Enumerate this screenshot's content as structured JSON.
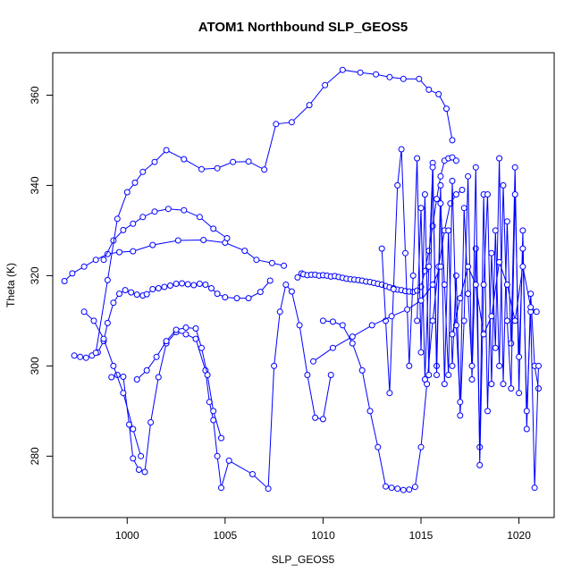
{
  "chart_data": {
    "type": "line",
    "title": "ATOM1 Northbound SLP_GEOS5",
    "xlabel": "SLP_GEOS5",
    "ylabel": "Theta (K)",
    "xlim": [
      996.2,
      1021.8
    ],
    "ylim": [
      266.4,
      369.4
    ],
    "x_ticks": [
      1000,
      1005,
      1010,
      1015,
      1020
    ],
    "y_ticks": [
      280,
      300,
      320,
      340,
      360
    ],
    "line_color": "#0000ff",
    "marker": "open-circle",
    "series": [
      {
        "x": [
          1008.7,
          1008.9,
          1009.0,
          1009.2,
          1009.4,
          1009.6,
          1009.8,
          1010.0,
          1010.2,
          1010.4,
          1010.6,
          1010.8,
          1011.0,
          1011.2,
          1011.4,
          1011.6,
          1011.8,
          1012.0,
          1012.2,
          1012.4,
          1012.6,
          1012.8,
          1013.0,
          1013.2,
          1013.4,
          1013.6,
          1013.8,
          1014.0,
          1014.2,
          1014.4,
          1014.6,
          1014.8,
          1015.0,
          1015.2,
          1015.4,
          1015.6,
          1015.8,
          1016.0,
          1016.2,
          1016.4,
          1016.6,
          1016.8
        ],
        "y": [
          319.6,
          320.5,
          320.3,
          320.1,
          320.2,
          320.2,
          320.0,
          320.1,
          320.0,
          319.8,
          319.9,
          319.7,
          319.5,
          319.3,
          319.2,
          319.1,
          319.0,
          318.9,
          318.7,
          318.6,
          318.4,
          318.2,
          318.0,
          317.7,
          317.4,
          317.2,
          316.9,
          316.8,
          316.6,
          316.5,
          316.4,
          316.7,
          317.5,
          321.0,
          325.5,
          331.0,
          337.0,
          342.0,
          345.5,
          346.0,
          346.2,
          345.5
        ]
      },
      {
        "x": [
          997.3,
          997.6,
          997.9,
          998.2,
          998.5,
          998.8,
          999.0,
          999.3,
          999.6,
          999.9,
          1000.2,
          1000.5,
          1000.8,
          1001.0,
          1001.3,
          1001.6,
          1001.9,
          1002.2,
          1002.5,
          1002.8,
          1003.1,
          1003.4,
          1003.7,
          1004.0,
          1004.3,
          1004.6,
          1005.0,
          1005.6,
          1006.2,
          1006.8,
          1007.3
        ],
        "y": [
          302.3,
          302.0,
          301.8,
          302.3,
          303.0,
          305.5,
          309.5,
          314.0,
          316.0,
          316.8,
          316.3,
          315.8,
          315.6,
          315.9,
          317.0,
          317.2,
          317.5,
          317.8,
          318.2,
          318.3,
          318.1,
          317.9,
          318.2,
          318.0,
          317.2,
          316.0,
          315.2,
          315.0,
          315.0,
          316.4,
          318.9
        ]
      },
      {
        "x": [
          996.8,
          997.2,
          997.8,
          998.4,
          999.0,
          999.6,
          1000.3,
          1001.3,
          1002.6,
          1003.9,
          1005.0,
          1006.0,
          1006.6,
          1007.4,
          1008.0
        ],
        "y": [
          318.8,
          320.5,
          322.0,
          323.5,
          324.8,
          325.2,
          325.4,
          326.8,
          327.8,
          327.9,
          327.3,
          325.5,
          323.5,
          322.8,
          322.2
        ]
      },
      {
        "x": [
          998.8,
          999.3,
          999.8,
          1000.3,
          1000.8,
          1001.4,
          1002.1,
          1002.9,
          1003.7,
          1004.4,
          1005.1
        ],
        "y": [
          323.5,
          327.8,
          330.1,
          331.5,
          333.0,
          334.2,
          334.8,
          334.5,
          333.0,
          330.4,
          328.3
        ]
      },
      {
        "x": [
          998.4,
          999.0,
          999.5,
          1000.0,
          1000.4,
          1000.8,
          1001.4,
          1002.0,
          1002.9,
          1003.8,
          1004.6,
          1005.4,
          1006.2,
          1007.0,
          1007.6,
          1008.4,
          1009.3,
          1010.1,
          1011.0,
          1011.9,
          1012.7,
          1013.4,
          1014.1,
          1014.9,
          1015.4,
          1015.9,
          1016.3,
          1016.6
        ],
        "y": [
          302.9,
          319.0,
          332.6,
          338.5,
          340.6,
          343.0,
          345.2,
          347.8,
          345.8,
          343.6,
          343.8,
          345.2,
          345.3,
          343.5,
          353.6,
          354.0,
          357.8,
          362.2,
          365.6,
          365.0,
          364.6,
          364.0,
          363.6,
          363.6,
          361.2,
          360.2,
          357.0,
          350.0
        ]
      },
      {
        "x": [
          999.2,
          999.5,
          999.8,
          1000.1,
          1000.3,
          1000.6,
          1000.9,
          1001.2,
          1001.6,
          1002.0,
          1002.5,
          1003.0,
          1003.5,
          1004.0,
          1004.2,
          1004.4,
          1004.6,
          1004.8,
          1005.2,
          1006.4,
          1007.2,
          1007.5,
          1007.8,
          1008.1,
          1008.4,
          1008.8,
          1009.2,
          1009.6,
          1010.0,
          1010.4
        ],
        "y": [
          297.5,
          298.0,
          297.6,
          287.0,
          279.5,
          277.0,
          276.5,
          287.5,
          297.5,
          305.0,
          307.5,
          307.0,
          306.0,
          299.0,
          292.0,
          288.0,
          280.0,
          273.0,
          279.0,
          276.0,
          272.8,
          300.0,
          312.0,
          318.0,
          316.5,
          309.0,
          298.0,
          288.5,
          288.2,
          298.0
        ]
      },
      {
        "x": [
          1000.5,
          1001.0,
          1001.5,
          1002.0,
          1002.5,
          1003.0,
          1003.5,
          1003.8,
          1004.1,
          1004.4,
          1004.8
        ],
        "y": [
          297.0,
          299.0,
          302.0,
          305.5,
          308.0,
          308.5,
          308.3,
          304.0,
          298.0,
          290.0,
          284.0
        ]
      },
      {
        "x": [
          1010.0,
          1010.5,
          1011.0,
          1011.5,
          1012.0,
          1012.4,
          1012.8,
          1013.2,
          1013.5,
          1013.8,
          1014.1,
          1014.4,
          1014.7,
          1015.0,
          1015.3,
          1015.6,
          1015.9,
          1016.2,
          1016.5,
          1016.8,
          1017.1
        ],
        "y": [
          310.0,
          309.8,
          309.0,
          305.0,
          299.0,
          290.0,
          282.0,
          273.3,
          273.0,
          272.8,
          272.5,
          272.6,
          273.2,
          282.0,
          296.0,
          310.0,
          322.0,
          330.0,
          336.0,
          338.0,
          339.0
        ]
      },
      {
        "x": [
          1013.0,
          1013.2,
          1013.4,
          1013.6,
          1013.8,
          1014.0,
          1014.2,
          1014.4,
          1014.6,
          1014.8,
          1015.0,
          1015.2,
          1015.4,
          1015.6,
          1015.8,
          1016.0,
          1016.2,
          1016.4,
          1016.6,
          1016.8,
          1017.0,
          1017.2,
          1017.4,
          1017.6,
          1017.8,
          1018.0,
          1018.2,
          1018.4,
          1018.6,
          1018.8,
          1019.0,
          1019.2,
          1019.4,
          1019.6,
          1019.8,
          1020.0,
          1020.2,
          1020.4,
          1020.6,
          1020.8,
          1021.0
        ],
        "y": [
          326.0,
          310.0,
          294.0,
          317.0,
          340.0,
          348.0,
          325.0,
          300.0,
          320.0,
          346.0,
          303.0,
          338.0,
          298.0,
          345.0,
          300.0,
          340.0,
          296.0,
          330.0,
          300.0,
          320.0,
          289.0,
          310.0,
          342.0,
          297.0,
          326.0,
          282.0,
          338.0,
          290.0,
          325.0,
          304.0,
          346.0,
          296.0,
          332.0,
          305.0,
          344.0,
          294.0,
          330.0,
          286.0,
          316.0,
          300.0,
          295.0
        ]
      },
      {
        "x": [
          1014.8,
          1015.0,
          1015.2,
          1015.4,
          1015.6,
          1015.8,
          1016.0,
          1016.2,
          1016.4,
          1016.6,
          1016.8,
          1017.0,
          1017.2,
          1017.4,
          1017.6,
          1017.8,
          1018.0,
          1018.2,
          1018.4,
          1018.6,
          1018.8,
          1019.0,
          1019.2,
          1019.4,
          1019.6,
          1019.8,
          1020.0,
          1020.2,
          1020.4,
          1020.6,
          1020.8,
          1021.0
        ],
        "y": [
          310.0,
          335.0,
          297.0,
          322.0,
          344.0,
          298.0,
          336.0,
          318.0,
          298.0,
          341.0,
          309.0,
          292.0,
          335.0,
          316.0,
          300.0,
          344.0,
          278.0,
          318.0,
          338.0,
          296.0,
          330.0,
          300.0,
          340.0,
          310.0,
          295.0,
          338.0,
          302.0,
          326.0,
          290.0,
          312.0,
          273.0,
          300.0
        ]
      },
      {
        "x": [
          1016.6,
          1017.0,
          1017.4,
          1017.8,
          1018.2,
          1018.6,
          1019.0,
          1019.4,
          1019.8,
          1020.2,
          1020.6,
          1020.9
        ],
        "y": [
          307.0,
          315.0,
          322.0,
          318.0,
          307.0,
          311.0,
          323.0,
          318.0,
          310.0,
          322.0,
          313.0,
          312.0
        ]
      },
      {
        "x": [
          997.8,
          998.3,
          998.8,
          999.3,
          999.8,
          1000.3,
          1000.7
        ],
        "y": [
          312.0,
          310.0,
          306.0,
          300.0,
          294.0,
          286.0,
          280.0
        ]
      },
      {
        "x": [
          1009.5,
          1010.5,
          1011.5,
          1012.5,
          1013.5,
          1014.3,
          1015.0,
          1015.6,
          1016.0
        ],
        "y": [
          301.0,
          304.0,
          306.5,
          309.0,
          311.0,
          312.5,
          314.5,
          318.0,
          322.0
        ]
      }
    ]
  }
}
